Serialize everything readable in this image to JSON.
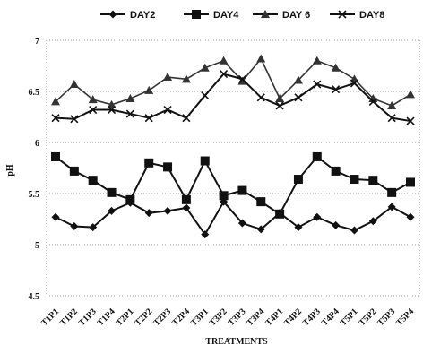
{
  "chart_data": {
    "type": "line",
    "xlabel": "TREATMENTS",
    "ylabel": "pH",
    "ylim": [
      4.5,
      7
    ],
    "yticks": [
      "4.5",
      "5",
      "5.5",
      "6",
      "6.5",
      "7"
    ],
    "grid": "horizontal dotted",
    "legend_position": "top",
    "categories": [
      "T1P1",
      "T1P2",
      "T1P3",
      "T1P4",
      "T2P1",
      "T2P2",
      "T2P3",
      "T2P4",
      "T3P1",
      "T3P2",
      "T3P3",
      "T3P4",
      "T4P1",
      "T4P2",
      "T4P3",
      "T4P4",
      "T5P1",
      "T5P2",
      "T5P3",
      "T5P4"
    ],
    "series": [
      {
        "name": "DAY2",
        "marker": "diamond",
        "values": [
          5.27,
          5.18,
          5.17,
          5.33,
          5.41,
          5.31,
          5.33,
          5.36,
          5.1,
          5.42,
          5.21,
          5.15,
          5.31,
          5.17,
          5.27,
          5.19,
          5.14,
          5.23,
          5.37,
          5.27
        ]
      },
      {
        "name": "DAY4",
        "marker": "square",
        "values": [
          5.86,
          5.72,
          5.63,
          5.51,
          5.44,
          5.8,
          5.76,
          5.44,
          5.82,
          5.48,
          5.53,
          5.42,
          5.3,
          5.64,
          5.86,
          5.72,
          5.64,
          5.63,
          5.51,
          5.61
        ]
      },
      {
        "name": "DAY 6",
        "marker": "triangle",
        "values": [
          6.4,
          6.57,
          6.42,
          6.37,
          6.43,
          6.51,
          6.64,
          6.62,
          6.73,
          6.8,
          6.6,
          6.82,
          6.43,
          6.61,
          6.8,
          6.73,
          6.62,
          6.43,
          6.36,
          6.47
        ]
      },
      {
        "name": "DAY8",
        "marker": "cross",
        "values": [
          6.24,
          6.23,
          6.32,
          6.32,
          6.28,
          6.24,
          6.32,
          6.24,
          6.46,
          6.67,
          6.62,
          6.44,
          6.36,
          6.44,
          6.57,
          6.52,
          6.58,
          6.4,
          6.24,
          6.21
        ]
      }
    ]
  }
}
